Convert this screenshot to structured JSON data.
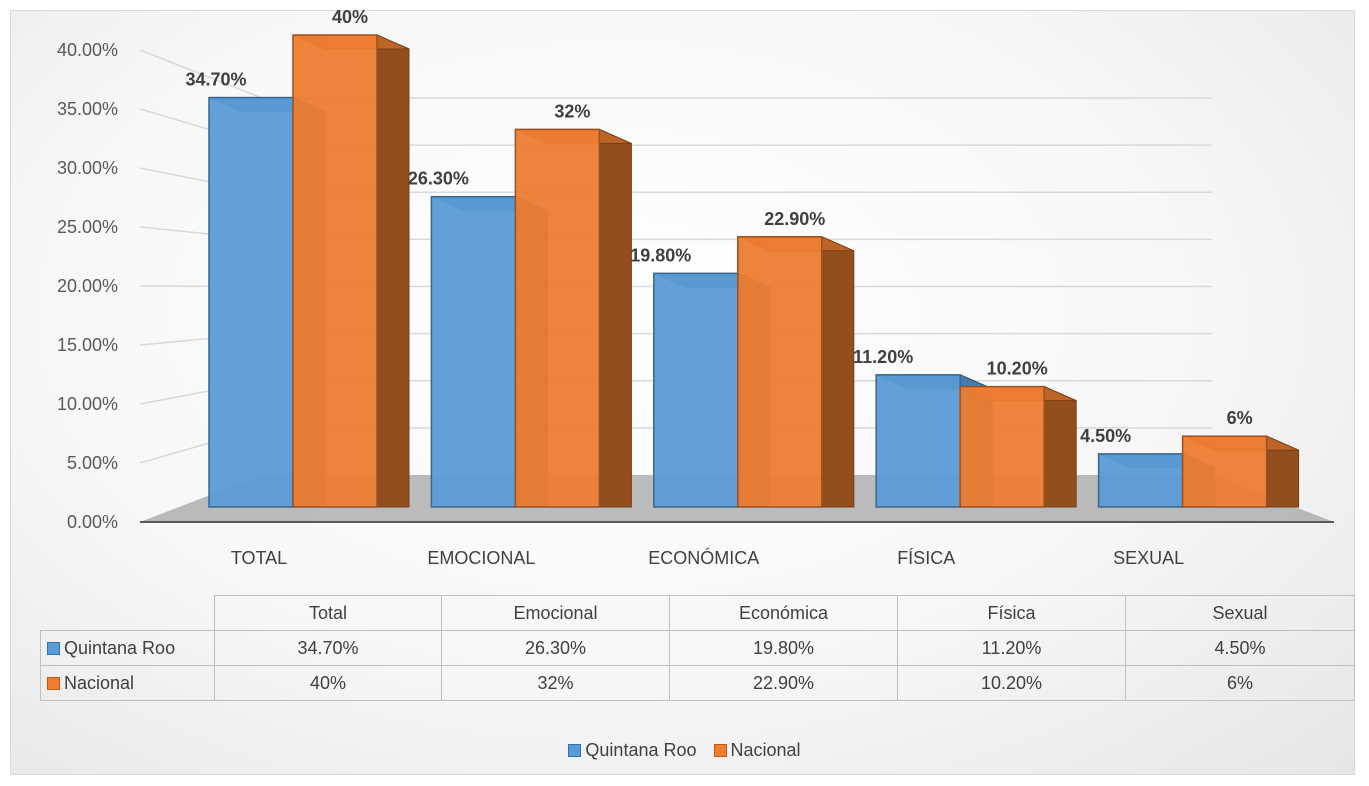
{
  "chart_data": {
    "type": "bar",
    "title": "",
    "xlabel": "",
    "ylabel": "",
    "categories": [
      "TOTAL",
      "EMOCIONAL",
      "ECONÓMICA",
      "FÍSICA",
      "SEXUAL"
    ],
    "series": [
      {
        "name": "Quintana Roo",
        "values": [
          34.7,
          26.3,
          19.8,
          11.2,
          4.5
        ],
        "labels": [
          "34.70%",
          "26.30%",
          "19.80%",
          "11.20%",
          "4.50%"
        ],
        "color": "#5b9bd5"
      },
      {
        "name": "Nacional",
        "values": [
          40,
          32,
          22.9,
          10.2,
          6
        ],
        "labels": [
          "40%",
          "32%",
          "22.90%",
          "10.20%",
          "6%"
        ],
        "color": "#ed7d31"
      }
    ],
    "ylim": [
      0,
      40
    ],
    "yticks": [
      "0.00%",
      "5.00%",
      "10.00%",
      "15.00%",
      "20.00%",
      "25.00%",
      "30.00%",
      "35.00%",
      "40.00%"
    ],
    "grid": true,
    "style": "3d-clustered-column",
    "legend_position": "bottom",
    "data_table": {
      "headers": [
        "Total",
        "Emocional",
        "Económica",
        "Física",
        "Sexual"
      ],
      "rows": [
        {
          "name": "Quintana Roo",
          "cells": [
            "34.70%",
            "26.30%",
            "19.80%",
            "11.20%",
            "4.50%"
          ]
        },
        {
          "name": "Nacional",
          "cells": [
            "40%",
            "32%",
            "22.90%",
            "10.20%",
            "6%"
          ]
        }
      ]
    }
  },
  "legend": {
    "items": [
      "Quintana Roo",
      "Nacional"
    ]
  }
}
